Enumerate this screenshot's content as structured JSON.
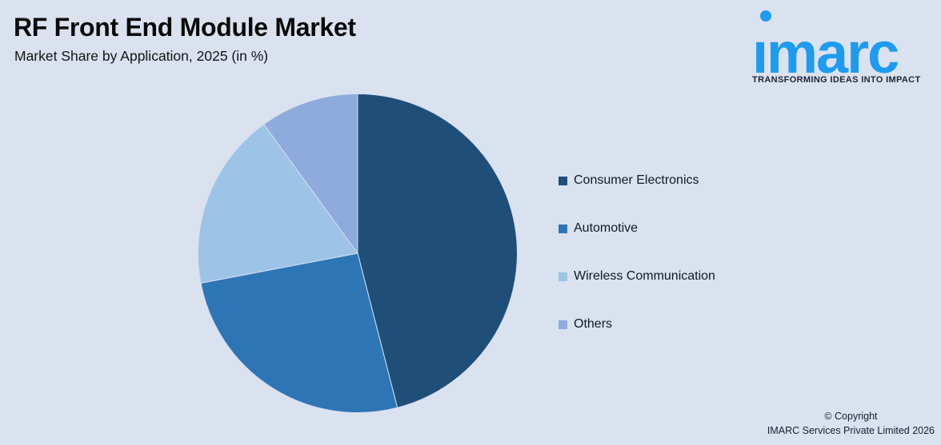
{
  "background_color": "#dae2f0",
  "header": {
    "title": "RF Front End Module Market",
    "subtitle": "Market Share by Application, 2025 (in %)"
  },
  "logo": {
    "brand": "imarc",
    "tagline": "TRANSFORMING IDEAS INTO IMPACT",
    "brand_color": "#1e9bf0"
  },
  "legend": {
    "items": [
      {
        "label": "Consumer Electronics",
        "color": "#1f4e79"
      },
      {
        "label": "Automotive",
        "color": "#2e75b6"
      },
      {
        "label": "Wireless Communication",
        "color": "#9dc3e6"
      },
      {
        "label": "Others",
        "color": "#8faadc"
      }
    ]
  },
  "chart_data": {
    "type": "pie",
    "title": "RF Front End Module Market",
    "subtitle": "Market Share by Application, 2025 (in %)",
    "categories": [
      "Consumer Electronics",
      "Automotive",
      "Wireless Communication",
      "Others"
    ],
    "values": [
      46,
      26,
      18,
      10
    ],
    "unit": "%",
    "colors": [
      "#1f4e79",
      "#2e75b6",
      "#9dc3e6",
      "#8faadc"
    ],
    "start_angle_deg": 0,
    "direction": "clockwise",
    "legend_position": "right",
    "data_labels_shown": false
  },
  "footer": {
    "line1": "© Copyright",
    "line2": "IMARC Services Private Limited 2026"
  }
}
